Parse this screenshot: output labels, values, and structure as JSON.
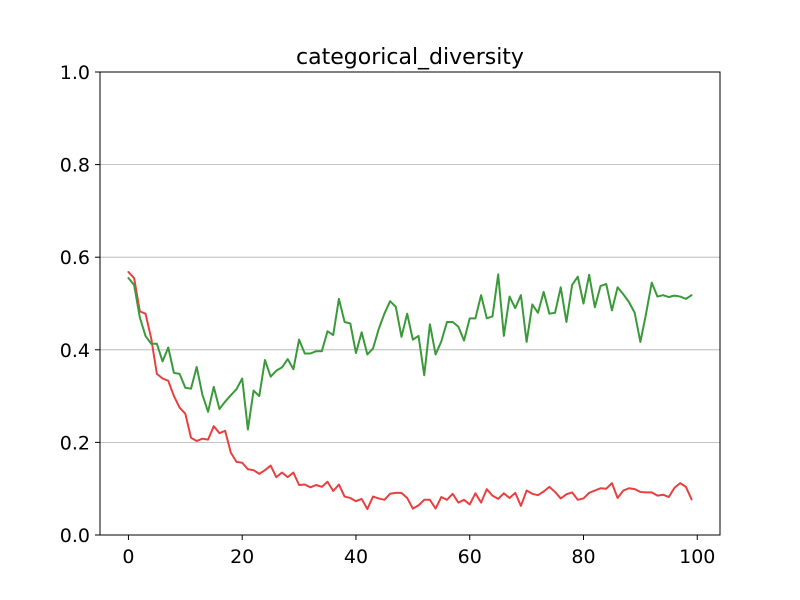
{
  "chart_data": {
    "type": "line",
    "title": "categorical_diversity",
    "xlabel": "",
    "ylabel": "",
    "xlim": [
      -5,
      104
    ],
    "ylim": [
      0.0,
      1.0
    ],
    "xticks": [
      0,
      20,
      40,
      60,
      80,
      100
    ],
    "yticks": [
      0.0,
      0.2,
      0.4,
      0.6,
      0.8,
      1.0
    ],
    "xtick_labels": [
      "0",
      "20",
      "40",
      "60",
      "80",
      "100"
    ],
    "ytick_labels": [
      "0.0",
      "0.2",
      "0.4",
      "0.6",
      "0.8",
      "1.0"
    ],
    "grid": "horizontal",
    "legend": "none",
    "series": [
      {
        "color": "#e84040",
        "x_start": 0,
        "x_step": 1,
        "values": [
          0.568,
          0.555,
          0.483,
          0.478,
          0.425,
          0.348,
          0.338,
          0.333,
          0.3,
          0.275,
          0.262,
          0.21,
          0.203,
          0.208,
          0.206,
          0.235,
          0.22,
          0.225,
          0.178,
          0.158,
          0.156,
          0.142,
          0.14,
          0.132,
          0.14,
          0.15,
          0.125,
          0.135,
          0.125,
          0.135,
          0.108,
          0.109,
          0.103,
          0.108,
          0.104,
          0.115,
          0.095,
          0.109,
          0.083,
          0.08,
          0.073,
          0.078,
          0.056,
          0.083,
          0.079,
          0.076,
          0.089,
          0.091,
          0.091,
          0.08,
          0.057,
          0.064,
          0.076,
          0.076,
          0.057,
          0.082,
          0.076,
          0.089,
          0.07,
          0.076,
          0.066,
          0.09,
          0.07,
          0.099,
          0.085,
          0.078,
          0.09,
          0.08,
          0.091,
          0.063,
          0.096,
          0.089,
          0.086,
          0.094,
          0.104,
          0.093,
          0.079,
          0.088,
          0.092,
          0.076,
          0.079,
          0.091,
          0.096,
          0.101,
          0.1,
          0.112,
          0.08,
          0.096,
          0.101,
          0.099,
          0.093,
          0.092,
          0.092,
          0.085,
          0.087,
          0.082,
          0.102,
          0.112,
          0.104,
          0.077
        ]
      },
      {
        "color": "#3a9a3a",
        "x_start": 0,
        "x_step": 1,
        "values": [
          0.555,
          0.54,
          0.47,
          0.43,
          0.413,
          0.413,
          0.375,
          0.405,
          0.35,
          0.348,
          0.318,
          0.316,
          0.363,
          0.303,
          0.266,
          0.32,
          0.272,
          0.288,
          0.302,
          0.315,
          0.338,
          0.228,
          0.312,
          0.3,
          0.378,
          0.342,
          0.355,
          0.362,
          0.38,
          0.358,
          0.422,
          0.392,
          0.392,
          0.397,
          0.397,
          0.44,
          0.432,
          0.51,
          0.46,
          0.457,
          0.393,
          0.438,
          0.39,
          0.403,
          0.445,
          0.478,
          0.505,
          0.493,
          0.428,
          0.478,
          0.422,
          0.43,
          0.345,
          0.455,
          0.39,
          0.418,
          0.46,
          0.46,
          0.45,
          0.42,
          0.468,
          0.468,
          0.518,
          0.468,
          0.472,
          0.563,
          0.43,
          0.515,
          0.49,
          0.518,
          0.417,
          0.498,
          0.48,
          0.525,
          0.478,
          0.48,
          0.535,
          0.46,
          0.54,
          0.558,
          0.5,
          0.562,
          0.492,
          0.538,
          0.542,
          0.485,
          0.535,
          0.52,
          0.503,
          0.48,
          0.417,
          0.478,
          0.545,
          0.515,
          0.518,
          0.514,
          0.517,
          0.515,
          0.51,
          0.518
        ]
      }
    ]
  }
}
